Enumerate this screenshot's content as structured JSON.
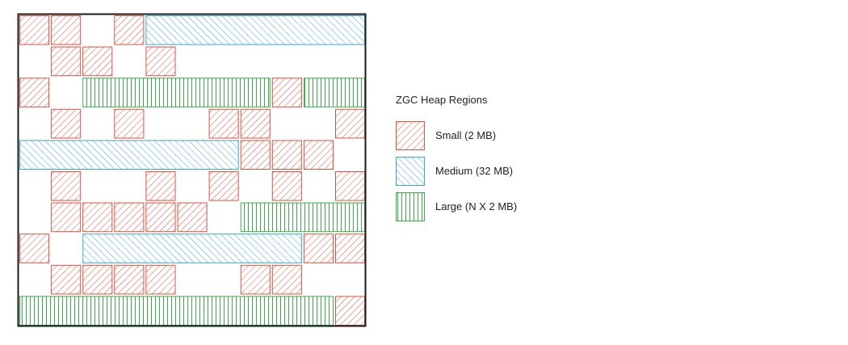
{
  "legend": {
    "title": "ZGC Heap Regions",
    "items": [
      {
        "key": "small",
        "label": "Small (2 MB)",
        "color": "#e0533f",
        "pattern": "diagonal"
      },
      {
        "key": "medium",
        "label": "Medium (32 MB)",
        "color": "#3ea8c8",
        "pattern": "diagonal"
      },
      {
        "key": "large",
        "label": "Large (N X 2 MB)",
        "color": "#3cab4a",
        "pattern": "vertical"
      }
    ]
  },
  "heap": {
    "columns": 11,
    "rows": [
      [
        {
          "type": "small",
          "start": 0,
          "span": 1
        },
        {
          "type": "small",
          "start": 1,
          "span": 1
        },
        {
          "type": "small",
          "start": 3,
          "span": 1
        },
        {
          "type": "medium",
          "start": 4,
          "span": 7
        }
      ],
      [
        {
          "type": "small",
          "start": 1,
          "span": 1
        },
        {
          "type": "small",
          "start": 2,
          "span": 1
        },
        {
          "type": "small",
          "start": 4,
          "span": 1
        }
      ],
      [
        {
          "type": "small",
          "start": 0,
          "span": 1
        },
        {
          "type": "large",
          "start": 2,
          "span": 6
        },
        {
          "type": "small",
          "start": 8,
          "span": 1
        },
        {
          "type": "large",
          "start": 9,
          "span": 2
        }
      ],
      [
        {
          "type": "small",
          "start": 1,
          "span": 1
        },
        {
          "type": "small",
          "start": 3,
          "span": 1
        },
        {
          "type": "small",
          "start": 6,
          "span": 1
        },
        {
          "type": "small",
          "start": 7,
          "span": 1
        },
        {
          "type": "small",
          "start": 10,
          "span": 1
        }
      ],
      [
        {
          "type": "medium",
          "start": 0,
          "span": 7
        },
        {
          "type": "small",
          "start": 7,
          "span": 1
        },
        {
          "type": "small",
          "start": 8,
          "span": 1
        },
        {
          "type": "small",
          "start": 9,
          "span": 1
        }
      ],
      [
        {
          "type": "small",
          "start": 1,
          "span": 1
        },
        {
          "type": "small",
          "start": 4,
          "span": 1
        },
        {
          "type": "small",
          "start": 6,
          "span": 1
        },
        {
          "type": "small",
          "start": 8,
          "span": 1
        },
        {
          "type": "small",
          "start": 10,
          "span": 1
        }
      ],
      [
        {
          "type": "small",
          "start": 1,
          "span": 1
        },
        {
          "type": "small",
          "start": 2,
          "span": 1
        },
        {
          "type": "small",
          "start": 3,
          "span": 1
        },
        {
          "type": "small",
          "start": 4,
          "span": 1
        },
        {
          "type": "small",
          "start": 5,
          "span": 1
        },
        {
          "type": "large",
          "start": 7,
          "span": 4
        }
      ],
      [
        {
          "type": "small",
          "start": 0,
          "span": 1
        },
        {
          "type": "medium",
          "start": 2,
          "span": 7
        },
        {
          "type": "small",
          "start": 9,
          "span": 1
        },
        {
          "type": "small",
          "start": 10,
          "span": 1
        }
      ],
      [
        {
          "type": "small",
          "start": 1,
          "span": 1
        },
        {
          "type": "small",
          "start": 2,
          "span": 1
        },
        {
          "type": "small",
          "start": 3,
          "span": 1
        },
        {
          "type": "small",
          "start": 4,
          "span": 1
        },
        {
          "type": "small",
          "start": 7,
          "span": 1
        },
        {
          "type": "small",
          "start": 8,
          "span": 1
        }
      ],
      [
        {
          "type": "large",
          "start": 0,
          "span": 10
        },
        {
          "type": "small",
          "start": 10,
          "span": 1
        }
      ]
    ]
  }
}
